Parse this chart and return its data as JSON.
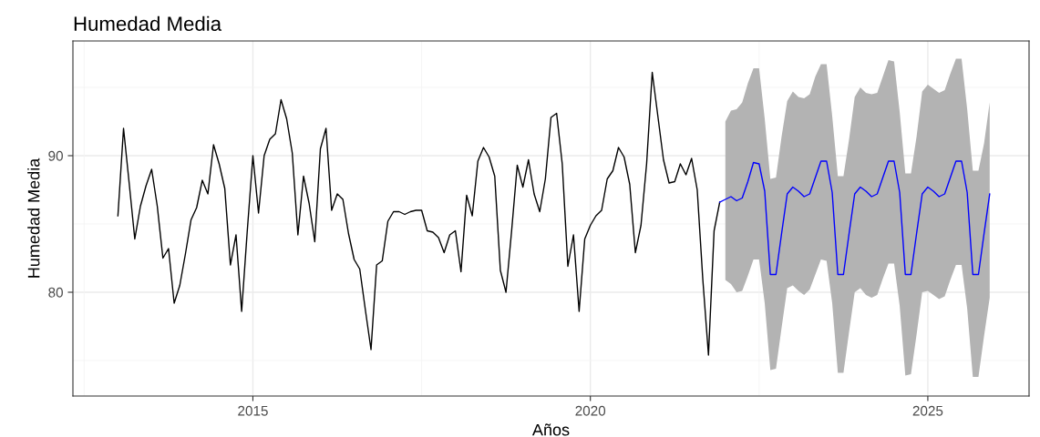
{
  "chart_data": {
    "type": "line",
    "title": "Humedad Media",
    "xlabel": "Años",
    "ylabel": "Humedad Media",
    "xlim": [
      "2012-05",
      "2026-07"
    ],
    "xticks": [
      {
        "value": "2015",
        "label": "2015"
      },
      {
        "value": "2020",
        "label": "2020"
      },
      {
        "value": "2025",
        "label": "2025"
      }
    ],
    "ylim": [
      72.4,
      98.4
    ],
    "yticks": [
      80,
      90
    ],
    "grid": true,
    "marker": "none",
    "line_style": "solid",
    "series": [
      {
        "color": "#000000",
        "x": [
          "2013-01",
          "2013-02",
          "2013-03",
          "2013-04",
          "2013-05",
          "2013-06",
          "2013-07",
          "2013-08",
          "2013-09",
          "2013-10",
          "2013-11",
          "2013-12",
          "2014-01",
          "2014-02",
          "2014-03",
          "2014-04",
          "2014-05",
          "2014-06",
          "2014-07",
          "2014-08",
          "2014-09",
          "2014-10",
          "2014-11",
          "2014-12",
          "2015-01",
          "2015-02",
          "2015-03",
          "2015-04",
          "2015-05",
          "2015-06",
          "2015-07",
          "2015-08",
          "2015-09",
          "2015-10",
          "2015-11",
          "2015-12",
          "2016-01",
          "2016-02",
          "2016-03",
          "2016-04",
          "2016-05",
          "2016-06",
          "2016-07",
          "2016-08",
          "2016-09",
          "2016-10",
          "2016-11",
          "2016-12",
          "2017-01",
          "2017-02",
          "2017-03",
          "2017-04",
          "2017-05",
          "2017-06",
          "2017-07",
          "2017-08",
          "2017-09",
          "2017-10",
          "2017-11",
          "2017-12",
          "2018-01",
          "2018-02",
          "2018-03",
          "2018-04",
          "2018-05",
          "2018-06",
          "2018-07",
          "2018-08",
          "2018-09",
          "2018-10",
          "2018-11",
          "2018-12",
          "2019-01",
          "2019-02",
          "2019-03",
          "2019-04",
          "2019-05",
          "2019-06",
          "2019-07",
          "2019-08",
          "2019-09",
          "2019-10",
          "2019-11",
          "2019-12",
          "2020-01",
          "2020-02",
          "2020-03",
          "2020-04",
          "2020-05",
          "2020-06",
          "2020-07",
          "2020-08",
          "2020-09",
          "2020-10",
          "2020-11",
          "2020-12",
          "2021-01",
          "2021-02",
          "2021-03",
          "2021-04",
          "2021-05",
          "2021-06",
          "2021-07",
          "2021-08",
          "2021-09",
          "2021-10",
          "2021-11",
          "2021-12"
        ],
        "values": [
          85.6,
          92.0,
          88.0,
          83.9,
          86.3,
          87.8,
          89.0,
          86.3,
          82.5,
          83.2,
          79.2,
          80.5,
          82.8,
          85.3,
          86.2,
          88.2,
          87.2,
          90.8,
          89.4,
          87.6,
          82.0,
          84.2,
          78.6,
          84.5,
          90.0,
          85.8,
          90.0,
          91.2,
          91.6,
          94.1,
          92.7,
          90.2,
          84.2,
          88.5,
          86.5,
          83.7,
          90.5,
          92.0,
          86.0,
          87.2,
          86.8,
          84.3,
          82.4,
          81.7,
          78.7,
          75.8,
          82.0,
          82.3,
          85.2,
          85.9,
          85.9,
          85.7,
          85.9,
          86.0,
          86.0,
          84.5,
          84.4,
          84.0,
          82.9,
          84.2,
          84.5,
          81.5,
          87.1,
          85.6,
          89.6,
          90.6,
          89.9,
          88.5,
          81.6,
          80.0,
          84.5,
          89.3,
          87.7,
          89.7,
          87.2,
          85.9,
          88.3,
          92.8,
          93.1,
          89.4,
          81.9,
          84.2,
          78.6,
          83.9,
          84.9,
          85.6,
          86.0,
          88.3,
          88.9,
          90.6,
          89.9,
          87.9,
          82.9,
          84.9,
          89.4,
          96.1,
          92.9,
          89.7,
          88.0,
          88.1,
          89.4,
          88.6,
          89.8,
          87.5,
          80.9,
          75.4,
          84.5,
          86.6
        ]
      },
      {
        "color": "#0000ff",
        "x": [
          "2021-12",
          "2022-01",
          "2022-02",
          "2022-03",
          "2022-04",
          "2022-05",
          "2022-06",
          "2022-07",
          "2022-08",
          "2022-09",
          "2022-10",
          "2022-11",
          "2022-12",
          "2023-01",
          "2023-02",
          "2023-03",
          "2023-04",
          "2023-05",
          "2023-06",
          "2023-07",
          "2023-08",
          "2023-09",
          "2023-10",
          "2023-11",
          "2023-12",
          "2024-01",
          "2024-02",
          "2024-03",
          "2024-04",
          "2024-05",
          "2024-06",
          "2024-07",
          "2024-08",
          "2024-09",
          "2024-10",
          "2024-11",
          "2024-12",
          "2025-01",
          "2025-02",
          "2025-03",
          "2025-04",
          "2025-05",
          "2025-06",
          "2025-07",
          "2025-08",
          "2025-09",
          "2025-10",
          "2025-11",
          "2025-12"
        ],
        "values": [
          86.6,
          86.8,
          87.0,
          86.7,
          86.9,
          88.1,
          89.5,
          89.4,
          87.4,
          81.3,
          81.3,
          84.3,
          87.2,
          87.7,
          87.4,
          87.0,
          87.2,
          88.4,
          89.6,
          89.6,
          87.3,
          81.3,
          81.3,
          84.3,
          87.2,
          87.7,
          87.4,
          87.0,
          87.2,
          88.4,
          89.6,
          89.6,
          87.3,
          81.3,
          81.3,
          84.3,
          87.2,
          87.7,
          87.4,
          87.0,
          87.2,
          88.4,
          89.6,
          89.6,
          87.3,
          81.3,
          81.3,
          84.3,
          87.2
        ],
        "lower": [
          null,
          80.9,
          80.6,
          80.0,
          80.1,
          81.2,
          82.4,
          82.4,
          79.2,
          74.3,
          74.4,
          77.4,
          80.3,
          80.5,
          80.1,
          79.8,
          80.2,
          81.3,
          82.4,
          82.3,
          79.2,
          74.1,
          74.1,
          77.1,
          80.0,
          80.3,
          79.8,
          79.6,
          79.8,
          81.0,
          82.1,
          82.1,
          79.0,
          73.9,
          74.0,
          76.9,
          80.0,
          80.1,
          79.8,
          79.5,
          79.7,
          80.9,
          82.0,
          82.0,
          78.8,
          73.8,
          73.8,
          76.8,
          79.6
        ],
        "upper": [
          null,
          92.5,
          93.3,
          93.4,
          93.9,
          95.3,
          96.4,
          96.4,
          92.7,
          88.3,
          88.4,
          91.4,
          94.0,
          94.7,
          94.3,
          94.2,
          94.5,
          95.8,
          96.7,
          96.7,
          92.9,
          88.5,
          88.5,
          91.2,
          94.3,
          95.0,
          94.6,
          94.5,
          94.6,
          95.8,
          97.0,
          96.9,
          93.2,
          88.7,
          88.7,
          91.4,
          94.7,
          95.2,
          94.9,
          94.6,
          94.8,
          96.0,
          97.1,
          97.1,
          93.4,
          88.9,
          88.9,
          90.9,
          93.9
        ]
      }
    ]
  }
}
